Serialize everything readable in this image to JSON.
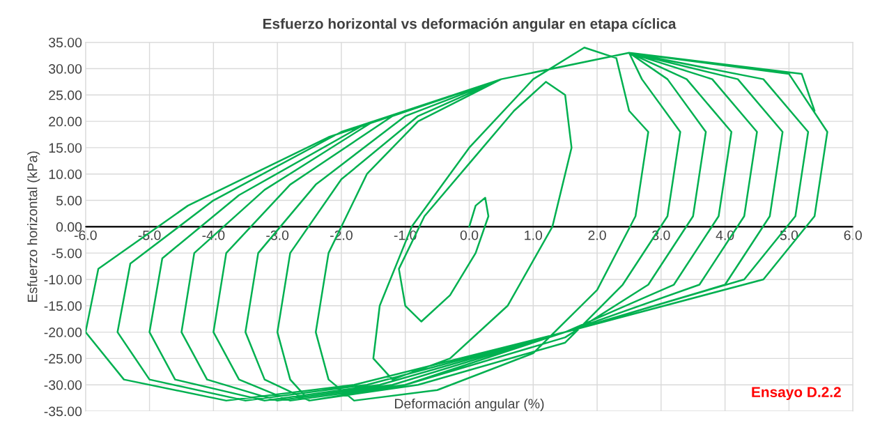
{
  "chart_data": {
    "type": "line",
    "title": "Esfuerzo horizontal vs deformación angular en etapa cíclica",
    "xlabel": "Deformación angular (%)",
    "ylabel": "Esfuerzo horizontal (kPa)",
    "series": [
      {
        "color": "#00b050",
        "x": [
          0,
          0.1,
          0.25,
          0.3,
          0.1,
          -0.3,
          -0.75,
          -1.0,
          -1.1,
          -0.7,
          0,
          0.7,
          1.2,
          1.5,
          1.6,
          1.3,
          0.6,
          -0.3,
          -1.2,
          -1.5,
          -1.4,
          -0.9,
          0,
          1,
          1.8,
          2.3,
          2.5,
          2.8,
          2.6,
          2.0,
          1.0,
          -0.5,
          -1.8,
          -2.2,
          -2.4,
          -2.2,
          -1.6,
          -0.8,
          0.5,
          2.5,
          2.7,
          3.3,
          3.1,
          2.4,
          1.5,
          -0.8,
          -2.5,
          -2.8,
          -3.0,
          -2.8,
          -2.0,
          -0.8,
          0.5,
          2.5,
          3.1,
          3.7,
          3.5,
          2.8,
          1.5,
          -1.0,
          -2.5,
          -3.2,
          -3.5,
          -3.3,
          -2.4,
          -1.0,
          0.5,
          2.5,
          3.4,
          4.1,
          3.9,
          3.2,
          1.5,
          -1.0,
          -2.8,
          -3.6,
          -4.0,
          -3.8,
          -2.8,
          -1.2,
          0.5,
          2.5,
          3.8,
          4.5,
          4.3,
          3.6,
          1.5,
          -1.2,
          -3.0,
          -4.1,
          -4.5,
          -4.3,
          -3.2,
          -1.5,
          0.5,
          2.5,
          4.2,
          4.9,
          4.7,
          4.0,
          1.5,
          -1.4,
          -3.2,
          -4.6,
          -5.0,
          -4.8,
          -3.6,
          -1.7,
          0.5,
          2.5,
          4.6,
          5.3,
          5.1,
          4.3,
          1.5,
          -1.6,
          -3.5,
          -5.0,
          -5.5,
          -5.3,
          -4.0,
          -2.0,
          0.5,
          2.5,
          5.0,
          5.6,
          5.4,
          4.6,
          1.5,
          -1.8,
          -3.8,
          -5.4,
          -6.0,
          -5.8,
          -4.4,
          -2.2,
          0.5,
          2.5,
          5.2,
          5.4
        ],
        "values": [
          0,
          4,
          5.5,
          2,
          -5,
          -13,
          -18,
          -15,
          -8,
          2,
          12,
          22,
          27.5,
          25,
          15,
          0,
          -15,
          -25,
          -29,
          -25,
          -15,
          0,
          15,
          28,
          34,
          32,
          22,
          18,
          2,
          -12,
          -24,
          -31,
          -33,
          -29,
          -20,
          -5,
          10,
          20,
          28,
          33,
          28,
          18,
          2,
          -11,
          -22,
          -30,
          -33,
          -29,
          -20,
          -5,
          9,
          21,
          28,
          33,
          28,
          18,
          2,
          -11,
          -21,
          -30,
          -33,
          -29,
          -20,
          -5,
          8,
          21,
          28,
          33,
          28,
          18,
          2,
          -11,
          -20,
          -30,
          -33,
          -29,
          -20,
          -5,
          8,
          21,
          28,
          33,
          28,
          18,
          2,
          -11,
          -20,
          -30,
          -33,
          -29,
          -20,
          -5,
          7,
          20,
          28,
          33,
          28,
          18,
          2,
          -11,
          -20,
          -30,
          -33,
          -29,
          -20,
          -6,
          6,
          19,
          28,
          33,
          28,
          18,
          2,
          -10,
          -20,
          -30,
          -33,
          -29,
          -20,
          -7,
          5,
          18,
          28,
          33,
          29,
          18,
          2,
          -10,
          -20,
          -30,
          -33,
          -29,
          -20,
          -8,
          4,
          17,
          28,
          33,
          29,
          22
        ]
      }
    ],
    "xlim": [
      -6,
      6
    ],
    "ylim": [
      -35,
      35
    ],
    "xticks": [
      {
        "value": -6,
        "label": "-6.0"
      },
      {
        "value": -5,
        "label": "-5.0"
      },
      {
        "value": -4,
        "label": "-4.0"
      },
      {
        "value": -3,
        "label": "-3.0"
      },
      {
        "value": -2,
        "label": "-2.0"
      },
      {
        "value": -1,
        "label": "-1.0"
      },
      {
        "value": 0,
        "label": "0.0"
      },
      {
        "value": 1,
        "label": "1.0"
      },
      {
        "value": 2,
        "label": "2.0"
      },
      {
        "value": 3,
        "label": "3.0"
      },
      {
        "value": 4,
        "label": "4.0"
      },
      {
        "value": 5,
        "label": "5.0"
      },
      {
        "value": 6,
        "label": "6.0"
      }
    ],
    "yticks": [
      {
        "value": -35,
        "label": "-35.00"
      },
      {
        "value": -30,
        "label": "-30.00"
      },
      {
        "value": -25,
        "label": "-25.00"
      },
      {
        "value": -20,
        "label": "-20.00"
      },
      {
        "value": -15,
        "label": "-15.00"
      },
      {
        "value": -10,
        "label": "-10.00"
      },
      {
        "value": -5,
        "label": "-5.00"
      },
      {
        "value": 0,
        "label": "0.00"
      },
      {
        "value": 5,
        "label": "5.00"
      },
      {
        "value": 10,
        "label": "10.00"
      },
      {
        "value": 15,
        "label": "15.00"
      },
      {
        "value": 20,
        "label": "20.00"
      },
      {
        "value": 25,
        "label": "25.00"
      },
      {
        "value": 30,
        "label": "30.00"
      },
      {
        "value": 35,
        "label": "35.00"
      }
    ],
    "ref_lines": [
      {
        "axis": "y",
        "value": 0,
        "color": "#000000"
      }
    ],
    "grid": true,
    "marker": "none",
    "line_style": "solid",
    "annotations": [
      "Ensayo D.2.2"
    ]
  }
}
